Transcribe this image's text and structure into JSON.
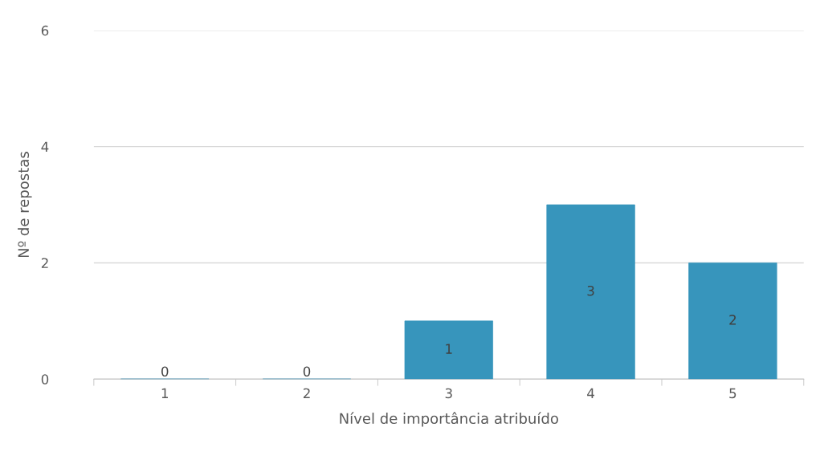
{
  "chart_data": {
    "type": "bar",
    "xlabel": "Nível de importância atribuído",
    "ylabel": "Nº de repostas",
    "categories": [
      "1",
      "2",
      "3",
      "4",
      "5"
    ],
    "values": [
      0,
      0,
      1,
      3,
      2
    ],
    "color": "#3795bc",
    "ylim": [
      0,
      6
    ],
    "yticks": [
      0,
      2,
      4,
      6
    ],
    "grid": "y",
    "data_labels": true
  }
}
